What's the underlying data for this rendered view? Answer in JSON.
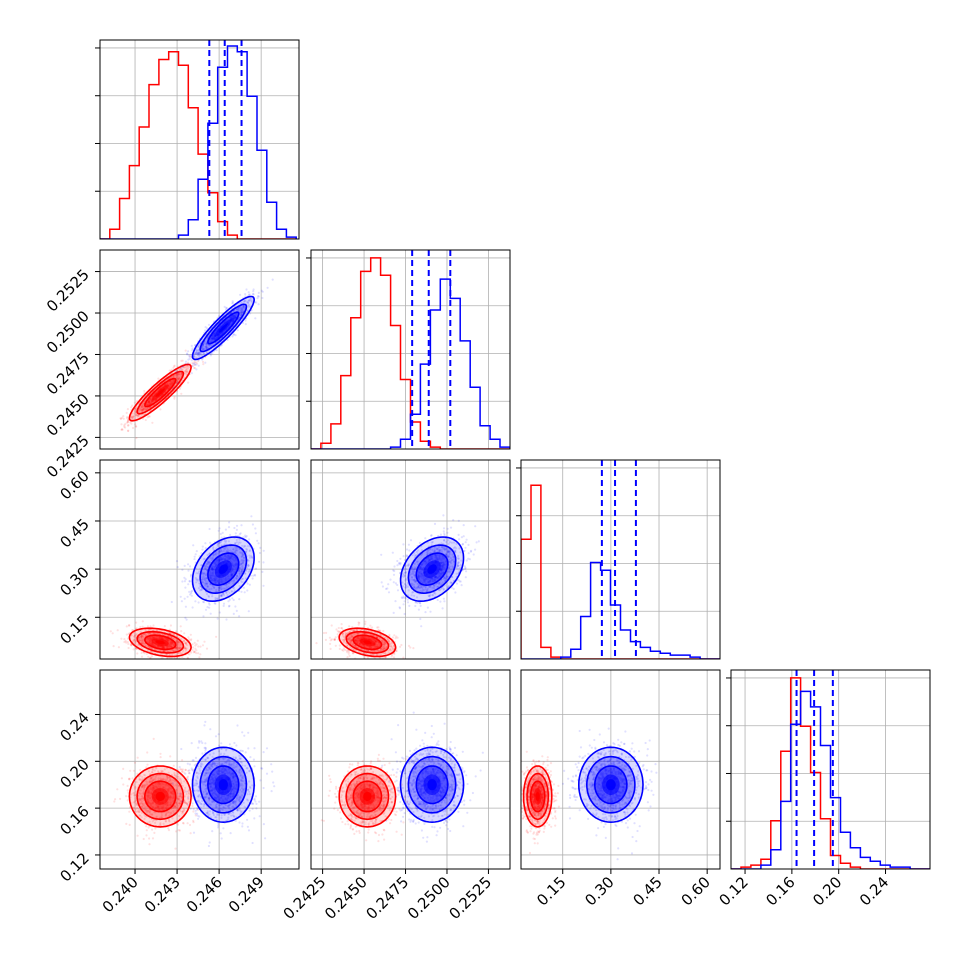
{
  "chart_data": {
    "type": "corner",
    "description_free": true,
    "grid": true,
    "colors": {
      "red": "#ff0000",
      "blue": "#0000ff"
    },
    "parameters": [
      {
        "range": [
          0.2375,
          0.2517
        ],
        "ticks": [
          0.24,
          0.243,
          0.246,
          0.249
        ],
        "tick_labels": [
          "0.240",
          "0.243",
          "0.246",
          "0.249"
        ],
        "red_hist": {
          "edges_start": 0.2375,
          "bin_width": 0.0007,
          "counts": [
            0,
            0.05,
            0.21,
            0.38,
            0.58,
            0.8,
            0.93,
            0.97,
            0.9,
            0.68,
            0.44,
            0.24,
            0.09,
            0.02,
            0,
            0,
            0,
            0,
            0,
            0
          ]
        },
        "blue_hist": {
          "edges_start": 0.2375,
          "bin_width": 0.0007,
          "counts": [
            0,
            0,
            0,
            0,
            0,
            0,
            0,
            0,
            0.02,
            0.1,
            0.31,
            0.6,
            0.89,
            1.0,
            0.97,
            0.74,
            0.46,
            0.19,
            0.05,
            0.01
          ]
        },
        "blue_quantiles": [
          0.2453,
          0.2464,
          0.2476
        ]
      },
      {
        "range": [
          0.2418,
          0.2538
        ],
        "ticks": [
          0.2425,
          0.245,
          0.2475,
          0.25,
          0.2525
        ],
        "tick_labels": [
          "0.2425",
          "0.2450",
          "0.2475",
          "0.2500",
          "0.2525"
        ],
        "red_hist": {
          "edges_start": 0.2418,
          "bin_width": 0.0006,
          "counts": [
            0,
            0.03,
            0.13,
            0.38,
            0.68,
            0.92,
            0.99,
            0.9,
            0.64,
            0.36,
            0.14,
            0.04,
            0.01,
            0,
            0,
            0,
            0,
            0,
            0,
            0
          ]
        },
        "blue_hist": {
          "edges_start": 0.2418,
          "bin_width": 0.0006,
          "counts": [
            0,
            0,
            0,
            0,
            0,
            0,
            0,
            0,
            0.01,
            0.05,
            0.18,
            0.44,
            0.72,
            0.88,
            0.78,
            0.56,
            0.32,
            0.12,
            0.05,
            0.01
          ]
        },
        "blue_quantiles": [
          0.2479,
          0.2489,
          0.2502
        ]
      },
      {
        "range": [
          0.02,
          0.64
        ],
        "ticks": [
          0.15,
          0.3,
          0.45,
          0.6
        ],
        "tick_labels": [
          "0.15",
          "0.30",
          "0.45",
          "0.60"
        ],
        "y_ticks": [
          0.15,
          0.3,
          0.45,
          0.6
        ],
        "red_hist": {
          "edges_start": 0.02,
          "bin_width": 0.031,
          "counts": [
            0.62,
            0.9,
            0.06,
            0.01,
            0,
            0,
            0,
            0,
            0,
            0,
            0,
            0,
            0,
            0,
            0,
            0,
            0,
            0,
            0,
            0
          ]
        },
        "blue_hist": {
          "edges_start": 0.02,
          "bin_width": 0.031,
          "counts": [
            0,
            0,
            0,
            0,
            0.01,
            0.05,
            0.22,
            0.5,
            0.46,
            0.28,
            0.15,
            0.09,
            0.06,
            0.04,
            0.03,
            0.02,
            0.02,
            0.01,
            0,
            0
          ]
        },
        "blue_quantiles": [
          0.272,
          0.313,
          0.378
        ]
      },
      {
        "range": [
          0.108,
          0.278
        ],
        "ticks": [
          0.12,
          0.16,
          0.2,
          0.24
        ],
        "tick_labels": [
          "0.12",
          "0.16",
          "0.20",
          "0.24"
        ],
        "red_hist": {
          "edges_start": 0.108,
          "bin_width": 0.0085,
          "counts": [
            0,
            0.01,
            0.02,
            0.05,
            0.25,
            0.61,
            0.99,
            0.74,
            0.5,
            0.26,
            0.07,
            0.03,
            0.01,
            0,
            0,
            0,
            0,
            0,
            0,
            0
          ]
        },
        "blue_hist": {
          "edges_start": 0.108,
          "bin_width": 0.0085,
          "counts": [
            0,
            0,
            0,
            0.02,
            0.1,
            0.35,
            0.75,
            0.92,
            0.84,
            0.64,
            0.37,
            0.19,
            0.11,
            0.06,
            0.04,
            0.02,
            0.01,
            0.01,
            0,
            0
          ]
        },
        "blue_quantiles": [
          0.164,
          0.179,
          0.195
        ]
      }
    ],
    "diag_yticks_frac": [
      0.24,
      0.48,
      0.72,
      0.96
    ],
    "clusters": {
      "red": {
        "mean": [
          0.2418,
          0.2452,
          0.072,
          0.17
        ],
        "sd": [
          0.0011,
          0.00085,
          0.022,
          0.013
        ],
        "corr": [
          [
            1,
            0.9,
            -0.35,
            0
          ],
          [
            0.9,
            1,
            -0.35,
            0
          ],
          [
            -0.35,
            -0.35,
            1,
            0
          ],
          [
            0,
            0,
            0,
            1
          ]
        ]
      },
      "blue": {
        "mean": [
          0.2463,
          0.2491,
          0.3,
          0.18
        ],
        "sd": [
          0.0011,
          0.00095,
          0.05,
          0.016
        ],
        "corr": [
          [
            1,
            0.9,
            0.35,
            0
          ],
          [
            0.9,
            1,
            0.35,
            0
          ],
          [
            0.35,
            0.35,
            1,
            0
          ],
          [
            0,
            0,
            0,
            1
          ]
        ]
      }
    }
  }
}
